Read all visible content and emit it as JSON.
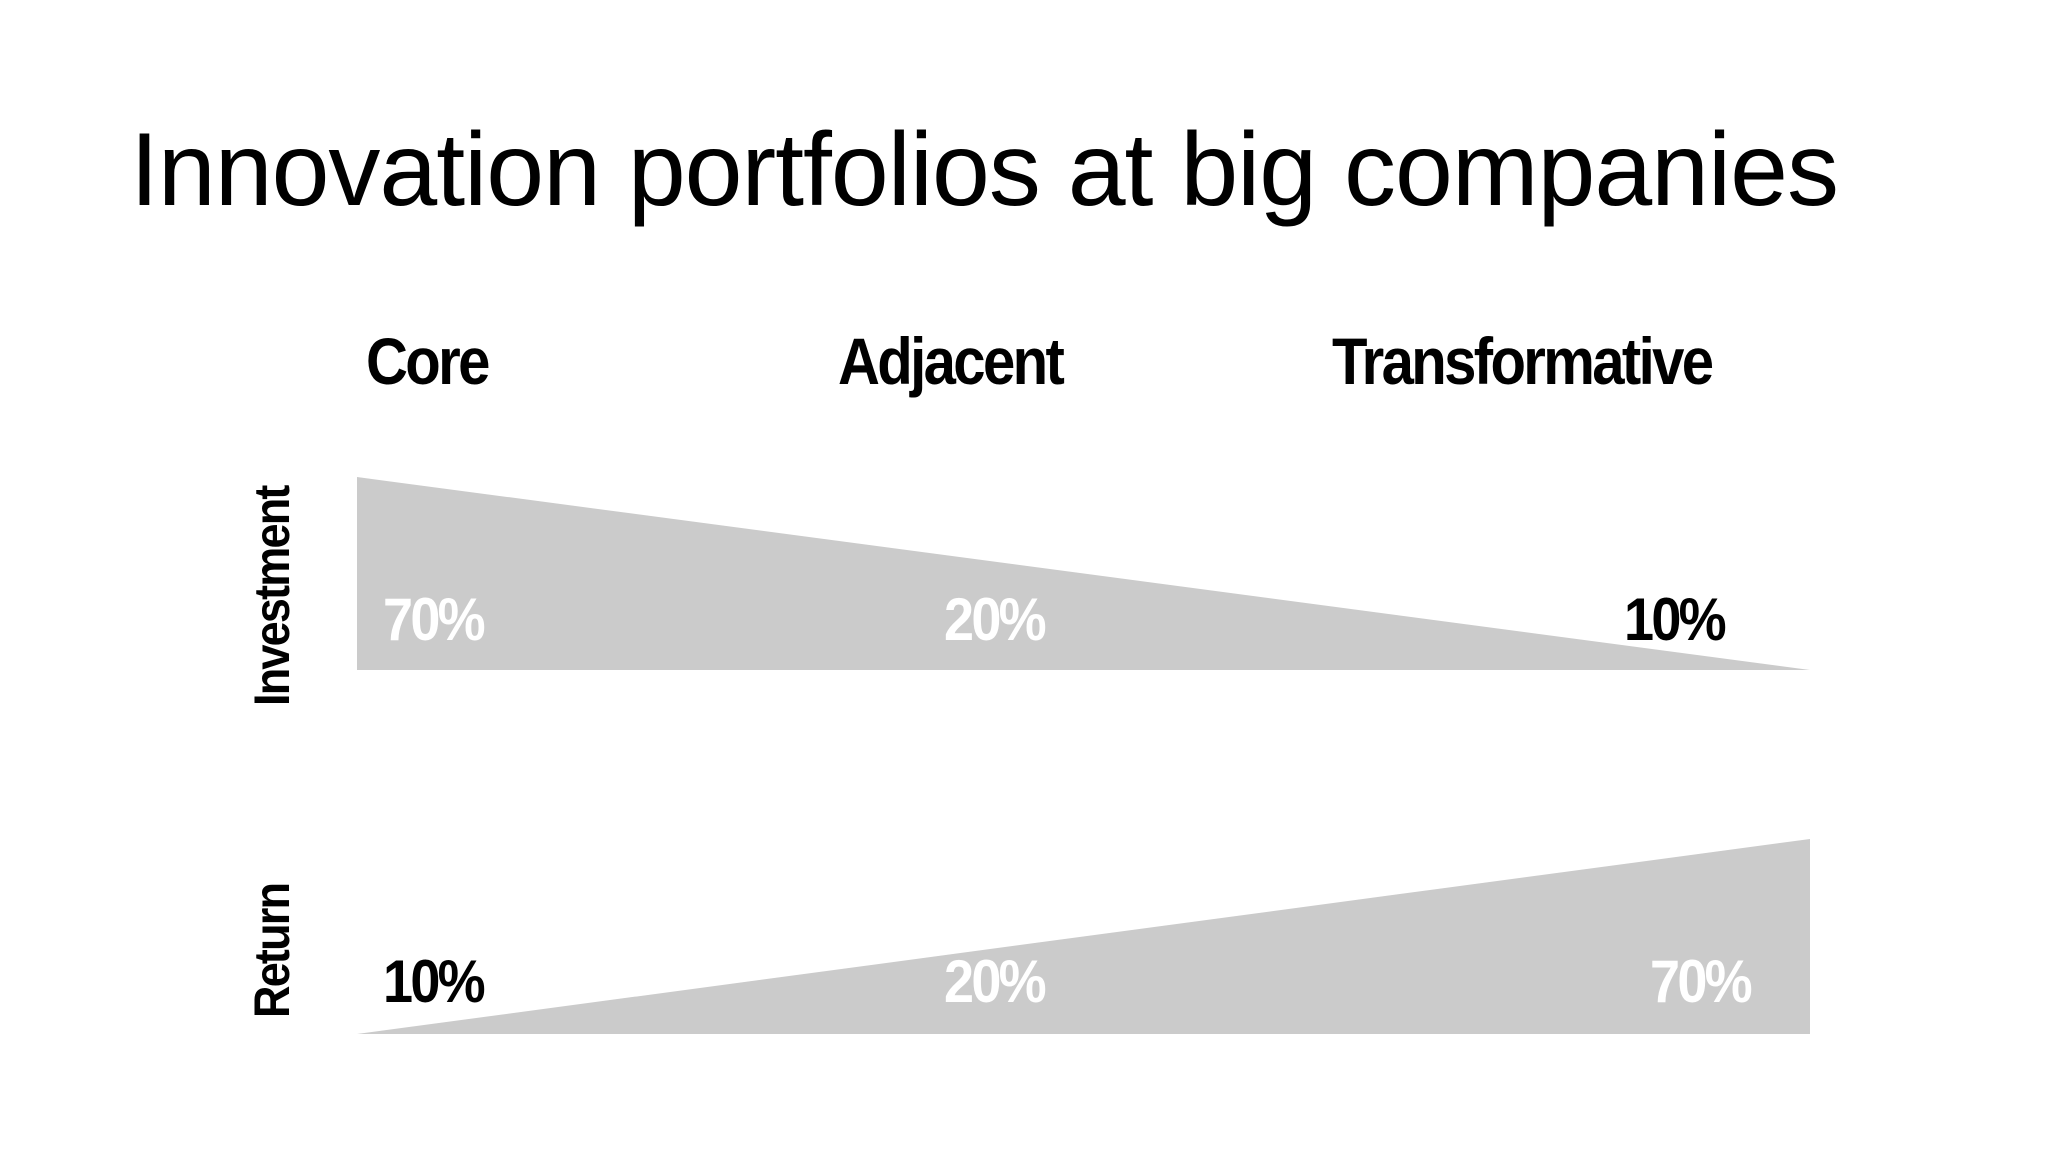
{
  "slide": {
    "title": "Innovation portfolios at big companies"
  },
  "columns": {
    "core": "Core",
    "adjacent": "Adjacent",
    "transformative": "Transformative"
  },
  "rows": {
    "investment": {
      "label": "Investment",
      "core": "70%",
      "adjacent": "20%",
      "transformative": "10%"
    },
    "return": {
      "label": "Return",
      "core": "10%",
      "adjacent": "20%",
      "transformative": "70%"
    }
  },
  "colors": {
    "wedge": "#cbcbcb",
    "text_on_wedge": "#ffffff",
    "text": "#000000",
    "background": "#ffffff"
  }
}
